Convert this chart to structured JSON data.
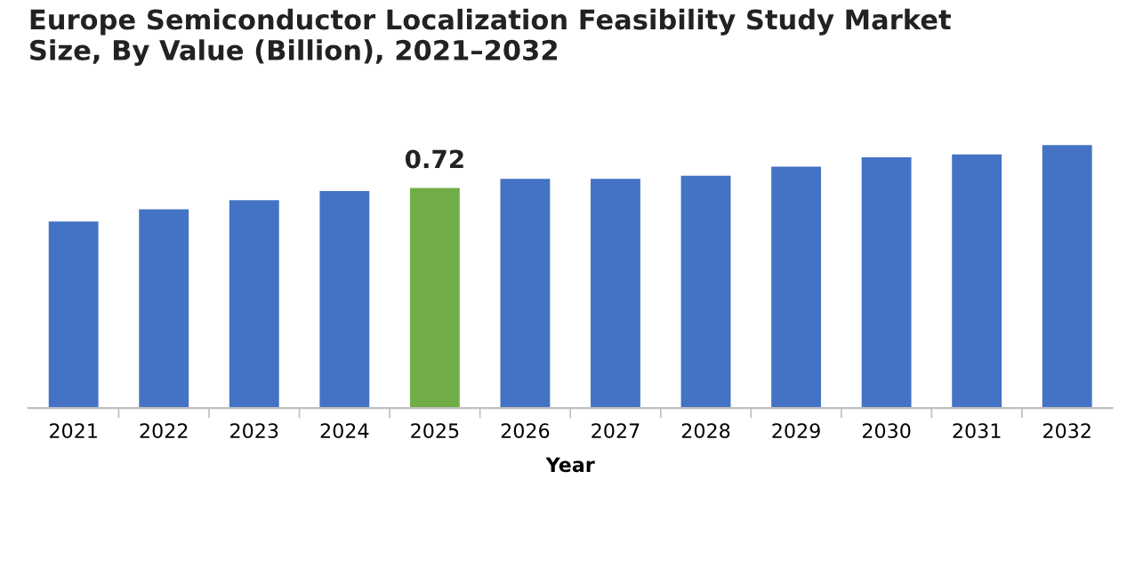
{
  "chart_data": {
    "type": "bar",
    "title": "Europe Semiconductor Localization Feasibility Study Market\nSize, By Value (Billion), 2021–2032",
    "xlabel": "Year",
    "categories": [
      "2021",
      "2022",
      "2023",
      "2024",
      "2025",
      "2026",
      "2027",
      "2028",
      "2029",
      "2030",
      "2031",
      "2032"
    ],
    "values": [
      0.61,
      0.65,
      0.68,
      0.71,
      0.72,
      0.75,
      0.75,
      0.76,
      0.79,
      0.82,
      0.83,
      0.86
    ],
    "colors": [
      "#4472c4",
      "#4472c4",
      "#4472c4",
      "#4472c4",
      "#70ad47",
      "#4472c4",
      "#4472c4",
      "#4472c4",
      "#4472c4",
      "#4472c4",
      "#4472c4",
      "#4472c4"
    ],
    "value_labels": [
      null,
      null,
      null,
      null,
      "0.72",
      null,
      null,
      null,
      null,
      null,
      null,
      null
    ]
  }
}
